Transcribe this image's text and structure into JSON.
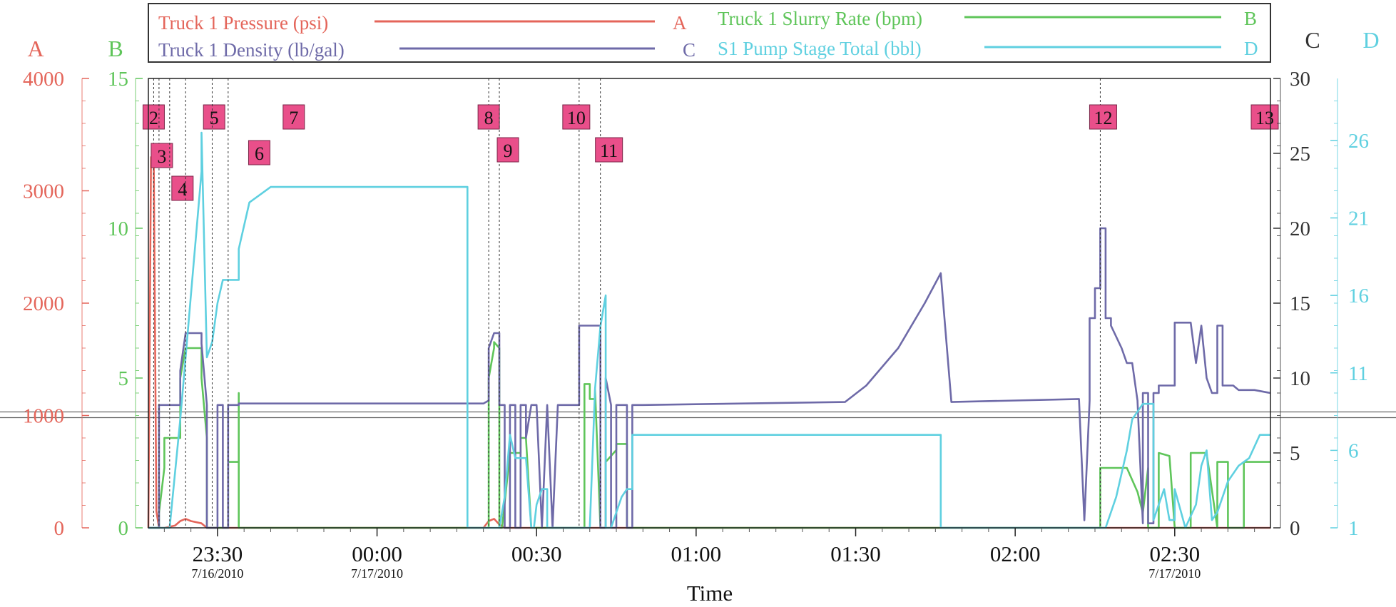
{
  "chart_data": {
    "type": "line",
    "xlabel": "Time",
    "legend": [
      {
        "label": "Truck 1 Pressure (psi)",
        "axis": "A",
        "color": "#e4655a"
      },
      {
        "label": "Truck 1 Slurry Rate (bpm)",
        "axis": "B",
        "color": "#5fc55a"
      },
      {
        "label": "Truck 1 Density (lb/gal)",
        "axis": "C",
        "color": "#6e6aa8"
      },
      {
        "label": "S1 Pump Stage Total (bbl)",
        "axis": "D",
        "color": "#5fd0e0"
      }
    ],
    "x_range_minutes": [
      -43,
      168
    ],
    "x_ticks": [
      {
        "time": "23:30",
        "date": "7/16/2010",
        "minute": -30
      },
      {
        "time": "00:00",
        "date": "7/17/2010",
        "minute": 0
      },
      {
        "time": "00:30",
        "date": "",
        "minute": 30
      },
      {
        "time": "01:00",
        "date": "",
        "minute": 60
      },
      {
        "time": "01:30",
        "date": "",
        "minute": 90
      },
      {
        "time": "02:00",
        "date": "",
        "minute": 120
      },
      {
        "time": "02:30",
        "date": "7/17/2010",
        "minute": 150
      }
    ],
    "axes": {
      "A": {
        "letter": "A",
        "color": "#e4655a",
        "range": [
          0,
          4000
        ],
        "ticks": [
          "0",
          "1000",
          "2000",
          "3000",
          "4000"
        ]
      },
      "B": {
        "letter": "B",
        "color": "#5fc55a",
        "range": [
          0,
          15
        ],
        "ticks": [
          "0",
          "5",
          "10",
          "15"
        ]
      },
      "C": {
        "letter": "C",
        "color": "#333333",
        "range": [
          0,
          30
        ],
        "ticks": [
          "0",
          "5",
          "10",
          "15",
          "20",
          "25",
          "30"
        ]
      },
      "D": {
        "letter": "D",
        "color": "#5fd0e0",
        "range": [
          1,
          30
        ],
        "ticks": [
          "1",
          "6",
          "11",
          "16",
          "21",
          "26"
        ]
      }
    },
    "events": [
      {
        "label": "2",
        "minute": -42
      },
      {
        "label": "3",
        "minute": -41
      },
      {
        "label": "4",
        "minute": -39
      },
      {
        "label": "5",
        "minute": -36
      },
      {
        "label": "6",
        "minute": -31
      },
      {
        "label": "7",
        "minute": -28
      },
      {
        "label": "8",
        "minute": 21
      },
      {
        "label": "9",
        "minute": 23
      },
      {
        "label": "10",
        "minute": 38
      },
      {
        "label": "11",
        "minute": 42
      },
      {
        "label": "12",
        "minute": 136
      },
      {
        "label": "13",
        "minute": 168
      }
    ],
    "series": [
      {
        "name": "Truck 1 Pressure (psi)",
        "axis": "A",
        "x": [
          -43,
          -42.5,
          -42,
          -41.5,
          -41,
          -40,
          -38,
          -37,
          -36,
          -35,
          -33,
          -32,
          -28,
          0,
          20,
          21,
          22,
          23,
          24,
          30,
          60,
          168
        ],
        "y": [
          0,
          3300,
          3300,
          150,
          0,
          0,
          20,
          60,
          80,
          60,
          40,
          0,
          0,
          0,
          0,
          60,
          80,
          30,
          0,
          0,
          0,
          0
        ]
      },
      {
        "name": "Truck 1 Slurry Rate (bpm)",
        "axis": "B",
        "x": [
          -43,
          -41,
          -41,
          -40,
          -40,
          -37,
          -37,
          -36,
          -36,
          -33,
          -33,
          -32,
          -32,
          -29,
          -28,
          -28,
          -26,
          -26,
          -26,
          20,
          21,
          21,
          22,
          22,
          23,
          23,
          23.5,
          25,
          26,
          27,
          27,
          28,
          29,
          30,
          31,
          31,
          38,
          39,
          39,
          40,
          40,
          41,
          41,
          42,
          43,
          43,
          44,
          45,
          45,
          47,
          47,
          48,
          49,
          49,
          133,
          136,
          136,
          141,
          141,
          143,
          144,
          145,
          145,
          147,
          147,
          149,
          150,
          152,
          153,
          153,
          156,
          158,
          158,
          160,
          160,
          163,
          163,
          168
        ],
        "y": [
          0,
          0,
          0.5,
          2,
          3,
          3,
          5,
          6,
          6,
          6,
          5,
          3,
          0,
          0,
          0,
          2.2,
          2.2,
          4.5,
          0,
          0,
          0,
          5,
          6.0,
          6.2,
          6.0,
          0,
          0,
          2.5,
          2.5,
          2.5,
          3,
          3,
          0,
          0,
          0,
          0,
          0,
          0,
          4.8,
          4.8,
          4.3,
          4.3,
          4.6,
          0,
          0,
          2.2,
          2.4,
          2.6,
          2.8,
          2.8,
          0,
          0,
          0,
          0,
          0,
          0,
          2,
          2,
          2,
          1.2,
          0.5,
          2,
          0,
          0,
          2.5,
          2.4,
          0,
          0,
          0,
          2.5,
          2.5,
          0,
          2.2,
          2.2,
          0,
          0,
          2.2,
          2.2
        ]
      },
      {
        "name": "Truck 1 Density (lb/gal)",
        "axis": "C",
        "x": [
          -43,
          -41,
          -41,
          -37,
          -37,
          -36,
          -36,
          -33,
          -33,
          -32,
          -32,
          -30,
          -30,
          -29,
          -29,
          -28,
          -28,
          -26,
          -26,
          20,
          21,
          21,
          22,
          23,
          23,
          24,
          24,
          25,
          25,
          26,
          26,
          27,
          27,
          28,
          28,
          29,
          30,
          31,
          32,
          33,
          34,
          35,
          38,
          38,
          39,
          42,
          42,
          43,
          43,
          44,
          44,
          45,
          45,
          47,
          47,
          48,
          48,
          50,
          50,
          88,
          92,
          98,
          103,
          106,
          106,
          108,
          132,
          132,
          133,
          134,
          134,
          135,
          135,
          136,
          136,
          137,
          137,
          138,
          138,
          140,
          141,
          142,
          143,
          144,
          144,
          145,
          145,
          146,
          146,
          147,
          147,
          149,
          150,
          150,
          153,
          154,
          154,
          155,
          155,
          156,
          156,
          157,
          158,
          158,
          159,
          159,
          160,
          161,
          162,
          165,
          168
        ],
        "y": [
          0,
          0,
          8.2,
          8.2,
          10.5,
          13,
          13,
          13,
          12.3,
          8.2,
          0,
          0,
          8.2,
          8.2,
          0,
          0,
          8.2,
          8.2,
          8.3,
          8.3,
          8.5,
          12,
          13,
          13,
          8.2,
          8.2,
          0,
          0,
          8.2,
          8.2,
          0,
          0,
          8.2,
          8.2,
          6,
          8.2,
          8.2,
          0,
          8.2,
          0,
          8.2,
          8.2,
          8.2,
          13.5,
          13.5,
          13.5,
          0,
          0,
          10,
          8.2,
          0,
          0,
          8.2,
          8.2,
          0,
          0,
          8.2,
          8.2,
          8.2,
          8.4,
          9.5,
          12,
          15,
          17,
          17,
          8.4,
          8.6,
          8.6,
          0.5,
          8.5,
          14,
          14,
          16,
          16,
          20,
          20,
          14,
          14,
          13.5,
          12,
          11,
          11,
          8.5,
          0.3,
          9,
          9,
          0.3,
          0.3,
          9,
          9,
          9.5,
          9.5,
          9.5,
          13.7,
          13.7,
          11,
          11,
          13.5,
          13.5,
          10,
          10,
          9,
          9,
          13.5,
          13.5,
          9.5,
          9.5,
          9.5,
          9.2,
          9.2,
          9
        ]
      },
      {
        "name": "S1 Pump Stage Total (bbl)",
        "axis": "D",
        "x": [
          -43,
          -39,
          -37,
          -36,
          -35,
          -34,
          -33,
          -33,
          -32,
          -31,
          -30,
          -29,
          -28,
          -28,
          -26,
          -26,
          -24,
          -22,
          -20,
          -18,
          17,
          17,
          23,
          24,
          25,
          26,
          26,
          27,
          28,
          29,
          29,
          29.5,
          30,
          31,
          32,
          32,
          40,
          41,
          42,
          43,
          43,
          44,
          45,
          46,
          47,
          48,
          48,
          105,
          105,
          106,
          106,
          137,
          139,
          141,
          142,
          144,
          145,
          145,
          146,
          146,
          147,
          148,
          149,
          150,
          150,
          152,
          152,
          154,
          155,
          156,
          157,
          158,
          160,
          162,
          164,
          166,
          168
        ],
        "y": [
          1,
          1,
          8,
          12,
          16,
          20,
          24,
          26.5,
          12,
          13,
          15.5,
          17,
          17,
          17,
          17,
          19,
          22,
          22.5,
          23,
          23,
          23,
          1,
          1,
          3,
          7,
          5.5,
          5.5,
          5.5,
          5.5,
          1,
          1,
          1,
          2.5,
          3.5,
          3.5,
          1,
          1,
          10,
          14,
          16,
          1,
          1,
          2,
          3,
          3.5,
          3.5,
          7,
          7,
          7,
          7,
          1,
          1,
          3,
          6,
          8,
          9,
          9,
          9,
          9,
          1.5,
          2.5,
          3.5,
          1.5,
          1.5,
          3.5,
          1,
          1,
          2.5,
          5,
          6,
          1.5,
          2,
          4,
          5,
          5.5,
          7,
          7
        ]
      }
    ]
  }
}
